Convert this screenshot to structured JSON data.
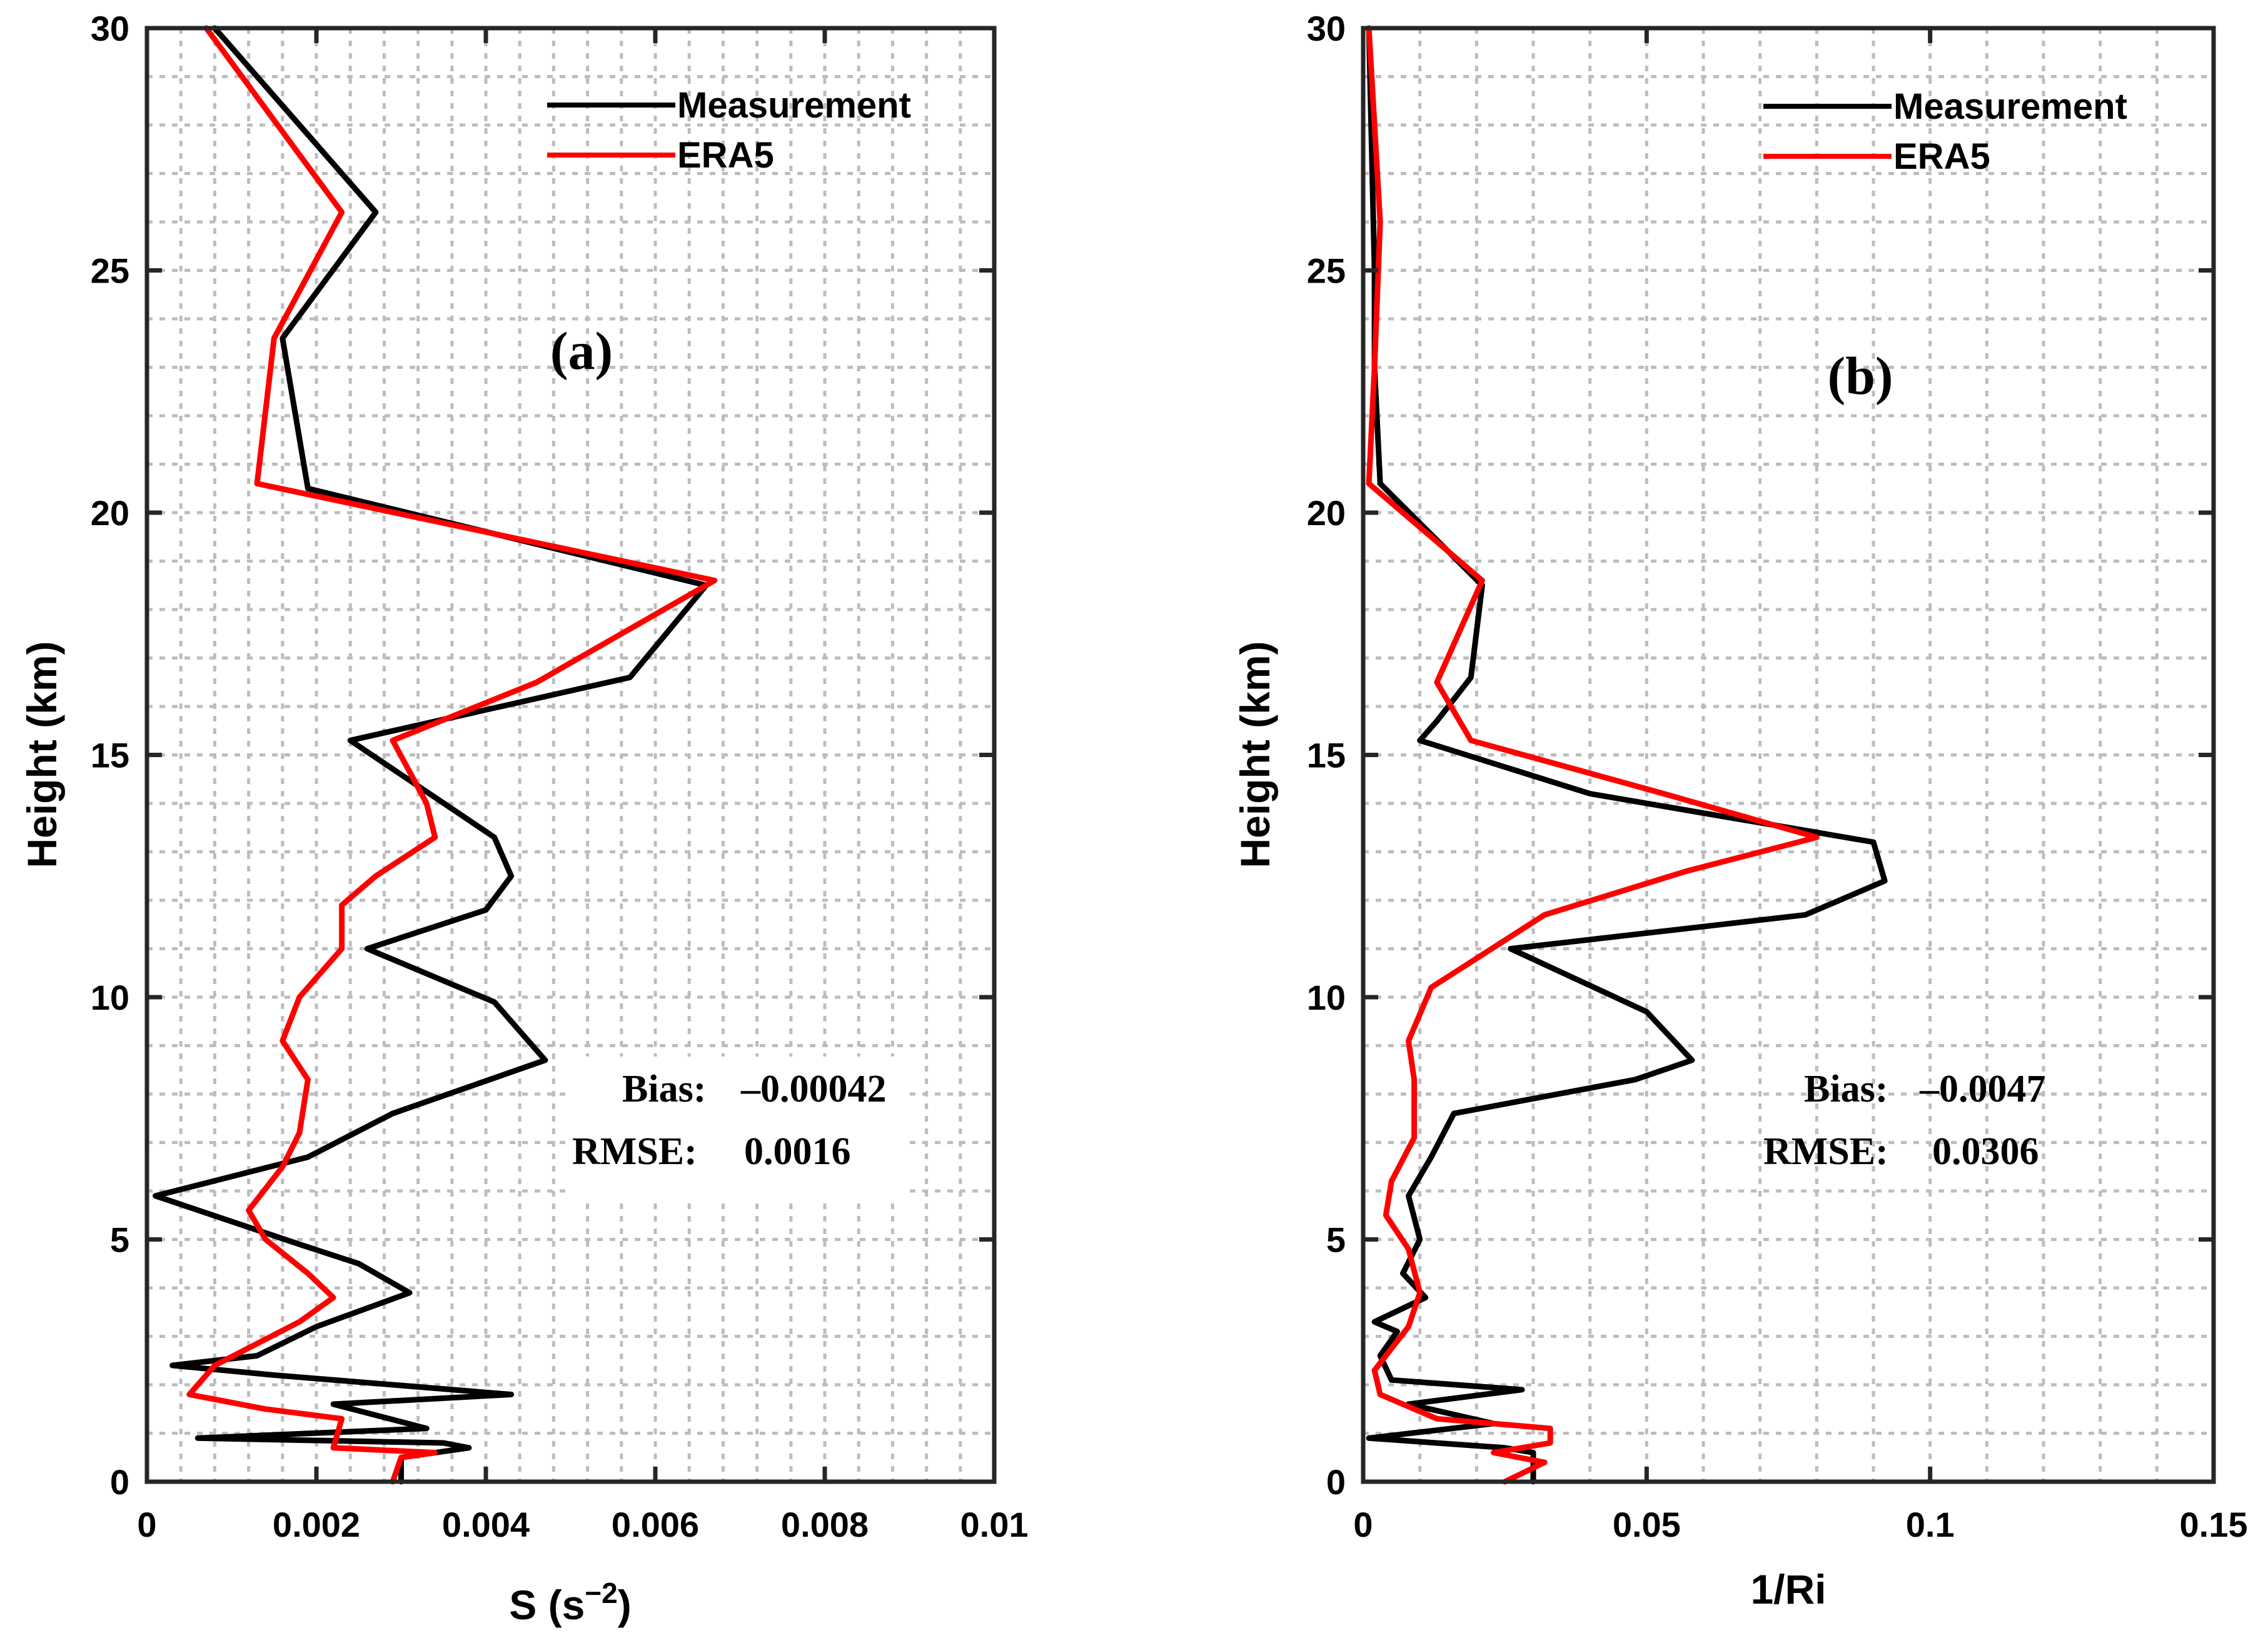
{
  "chart_data": [
    {
      "type": "line",
      "panel_label": "(a)",
      "xlabel_main": "S (s",
      "xlabel_sup": "−2",
      "xlabel_close": ")",
      "ylabel": "Height (km)",
      "xlim": [
        0,
        0.01
      ],
      "ylim": [
        0,
        30
      ],
      "xticks": [
        0,
        0.002,
        0.004,
        0.006,
        0.008,
        0.01
      ],
      "xtick_labels": [
        "0",
        "0.002",
        "0.004",
        "0.006",
        "0.008",
        "0.01"
      ],
      "yticks": [
        0,
        5,
        10,
        15,
        20,
        25,
        30
      ],
      "ytick_labels": [
        "0",
        "5",
        "10",
        "15",
        "20",
        "25",
        "30"
      ],
      "grid": true,
      "legend_position": "top-right",
      "bias_label": "Bias:",
      "bias_value": "–0.00042",
      "rmse_label": "RMSE:",
      "rmse_value": "0.0016",
      "series": [
        {
          "name": "Measurement",
          "color": "#000000",
          "points": [
            [
              0.003,
              0
            ],
            [
              0.003,
              0.5
            ],
            [
              0.0038,
              0.7
            ],
            [
              0.0035,
              0.8
            ],
            [
              0.0006,
              0.9
            ],
            [
              0.0033,
              1.1
            ],
            [
              0.0022,
              1.6
            ],
            [
              0.0043,
              1.8
            ],
            [
              0.0015,
              2.2
            ],
            [
              0.0003,
              2.4
            ],
            [
              0.0013,
              2.6
            ],
            [
              0.002,
              3.2
            ],
            [
              0.0031,
              3.9
            ],
            [
              0.0025,
              4.5
            ],
            [
              0.0018,
              4.9
            ],
            [
              0.0001,
              5.9
            ],
            [
              0.0019,
              6.7
            ],
            [
              0.0029,
              7.6
            ],
            [
              0.0047,
              8.7
            ],
            [
              0.0041,
              9.9
            ],
            [
              0.0026,
              11.0
            ],
            [
              0.004,
              11.8
            ],
            [
              0.0043,
              12.5
            ],
            [
              0.0041,
              13.3
            ],
            [
              0.0024,
              15.3
            ],
            [
              0.0057,
              16.6
            ],
            [
              0.0066,
              18.5
            ],
            [
              0.0019,
              20.5
            ],
            [
              0.0016,
              23.6
            ],
            [
              0.0027,
              26.2
            ],
            [
              0.0008,
              30.0
            ]
          ]
        },
        {
          "name": "ERA5",
          "color": "#ff0000",
          "points": [
            [
              0.0029,
              0
            ],
            [
              0.003,
              0.5
            ],
            [
              0.0034,
              0.6
            ],
            [
              0.0022,
              0.7
            ],
            [
              0.0023,
              1.3
            ],
            [
              0.0014,
              1.5
            ],
            [
              0.0005,
              1.8
            ],
            [
              0.0008,
              2.4
            ],
            [
              0.0018,
              3.3
            ],
            [
              0.0022,
              3.8
            ],
            [
              0.0019,
              4.3
            ],
            [
              0.0014,
              5.0
            ],
            [
              0.0012,
              5.6
            ],
            [
              0.0016,
              6.5
            ],
            [
              0.0018,
              7.2
            ],
            [
              0.0019,
              8.3
            ],
            [
              0.0016,
              9.1
            ],
            [
              0.0018,
              10.0
            ],
            [
              0.0023,
              11.0
            ],
            [
              0.0023,
              11.9
            ],
            [
              0.0027,
              12.5
            ],
            [
              0.0034,
              13.3
            ],
            [
              0.0033,
              14.0
            ],
            [
              0.0029,
              15.3
            ],
            [
              0.0046,
              16.5
            ],
            [
              0.0067,
              18.6
            ],
            [
              0.0013,
              20.6
            ],
            [
              0.0015,
              23.6
            ],
            [
              0.0023,
              26.2
            ],
            [
              0.0007,
              30.0
            ]
          ]
        }
      ]
    },
    {
      "type": "line",
      "panel_label": "(b)",
      "xlabel_main": "1/Ri",
      "ylabel": "Height (km)",
      "xlim": [
        0,
        0.15
      ],
      "ylim": [
        0,
        30
      ],
      "xticks": [
        0,
        0.05,
        0.1,
        0.15
      ],
      "xtick_labels": [
        "0",
        "0.05",
        "0.1",
        "0.15"
      ],
      "yticks": [
        0,
        5,
        10,
        15,
        20,
        25,
        30
      ],
      "ytick_labels": [
        "0",
        "5",
        "10",
        "15",
        "20",
        "25",
        "30"
      ],
      "grid": true,
      "legend_position": "top-right",
      "bias_label": "Bias:",
      "bias_value": "–0.0047",
      "rmse_label": "RMSE:",
      "rmse_value": "0.0306",
      "series": [
        {
          "name": "Measurement",
          "color": "#000000",
          "points": [
            [
              0.03,
              0
            ],
            [
              0.03,
              0.6
            ],
            [
              0.025,
              0.7
            ],
            [
              0.001,
              0.9
            ],
            [
              0.023,
              1.2
            ],
            [
              0.008,
              1.6
            ],
            [
              0.028,
              1.9
            ],
            [
              0.005,
              2.1
            ],
            [
              0.003,
              2.6
            ],
            [
              0.006,
              3.1
            ],
            [
              0.002,
              3.3
            ],
            [
              0.011,
              3.8
            ],
            [
              0.007,
              4.3
            ],
            [
              0.01,
              5.0
            ],
            [
              0.008,
              5.9
            ],
            [
              0.012,
              6.7
            ],
            [
              0.016,
              7.6
            ],
            [
              0.048,
              8.3
            ],
            [
              0.058,
              8.7
            ],
            [
              0.05,
              9.7
            ],
            [
              0.026,
              11.0
            ],
            [
              0.078,
              11.7
            ],
            [
              0.092,
              12.4
            ],
            [
              0.09,
              13.2
            ],
            [
              0.04,
              14.2
            ],
            [
              0.01,
              15.3
            ],
            [
              0.013,
              15.7
            ],
            [
              0.019,
              16.6
            ],
            [
              0.021,
              18.5
            ],
            [
              0.003,
              20.6
            ],
            [
              0.002,
              23.0
            ],
            [
              0.002,
              25.0
            ],
            [
              0.001,
              30.0
            ]
          ]
        },
        {
          "name": "ERA5",
          "color": "#ff0000",
          "points": [
            [
              0.025,
              0
            ],
            [
              0.032,
              0.4
            ],
            [
              0.023,
              0.6
            ],
            [
              0.033,
              0.8
            ],
            [
              0.033,
              1.1
            ],
            [
              0.013,
              1.3
            ],
            [
              0.003,
              1.8
            ],
            [
              0.002,
              2.3
            ],
            [
              0.008,
              3.2
            ],
            [
              0.01,
              3.9
            ],
            [
              0.008,
              4.8
            ],
            [
              0.004,
              5.5
            ],
            [
              0.005,
              6.2
            ],
            [
              0.009,
              7.1
            ],
            [
              0.009,
              8.3
            ],
            [
              0.008,
              9.1
            ],
            [
              0.012,
              10.2
            ],
            [
              0.032,
              11.7
            ],
            [
              0.057,
              12.6
            ],
            [
              0.08,
              13.3
            ],
            [
              0.053,
              14.2
            ],
            [
              0.019,
              15.3
            ],
            [
              0.013,
              16.5
            ],
            [
              0.021,
              18.6
            ],
            [
              0.001,
              20.6
            ],
            [
              0.002,
              23.0
            ],
            [
              0.003,
              26.0
            ],
            [
              0.001,
              30.0
            ]
          ]
        }
      ]
    }
  ]
}
